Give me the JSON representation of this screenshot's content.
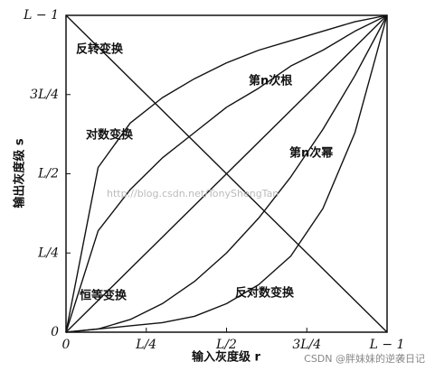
{
  "chart_data": {
    "type": "line",
    "x": [
      0,
      0.1,
      0.2,
      0.3,
      0.4,
      0.5,
      0.6,
      0.7,
      0.8,
      0.9,
      1
    ],
    "series": [
      {
        "name": "恒等变换",
        "color": "#111111",
        "values": [
          0,
          0.1,
          0.2,
          0.3,
          0.4,
          0.5,
          0.6,
          0.7,
          0.8,
          0.9,
          1
        ]
      },
      {
        "name": "反转变换",
        "color": "#111111",
        "values": [
          1,
          0.9,
          0.8,
          0.7,
          0.6,
          0.5,
          0.4,
          0.3,
          0.2,
          0.1,
          0
        ]
      },
      {
        "name": "对数变换",
        "color": "#111111",
        "values": [
          0,
          0.52,
          0.66,
          0.74,
          0.8,
          0.85,
          0.89,
          0.92,
          0.95,
          0.98,
          1
        ]
      },
      {
        "name": "反对数变换",
        "color": "#111111",
        "values": [
          0,
          0.01,
          0.02,
          0.03,
          0.05,
          0.09,
          0.15,
          0.24,
          0.39,
          0.63,
          1
        ]
      },
      {
        "name": "第n次根",
        "color": "#111111",
        "values": [
          0,
          0.32,
          0.45,
          0.55,
          0.63,
          0.71,
          0.77,
          0.84,
          0.89,
          0.95,
          1
        ]
      },
      {
        "name": "第n次幂",
        "color": "#111111",
        "values": [
          0,
          0.01,
          0.04,
          0.09,
          0.16,
          0.25,
          0.36,
          0.49,
          0.64,
          0.81,
          1
        ]
      }
    ],
    "xlim": [
      0,
      1
    ],
    "ylim": [
      0,
      1
    ],
    "xticks": [
      0,
      {
        "value": 0.25,
        "label": "L/4"
      },
      {
        "value": 0.5,
        "label": "L/2"
      },
      {
        "value": 0.75,
        "label": "3L/4"
      },
      {
        "value": 1,
        "label": "L − 1"
      }
    ],
    "yticks": [
      0,
      {
        "value": 0.25,
        "label": "L/4"
      },
      {
        "value": 0.5,
        "label": "L/2"
      },
      {
        "value": 0.75,
        "label": "3L/4"
      },
      {
        "value": 1,
        "label": "L − 1"
      }
    ],
    "xlabel": "输入灰度级 r",
    "ylabel": "输出灰度级 s",
    "watermarks": [
      "http://blog.csdn.net/TonyShengTan",
      "CSDN @胖妹妹的逆袭日记"
    ]
  }
}
